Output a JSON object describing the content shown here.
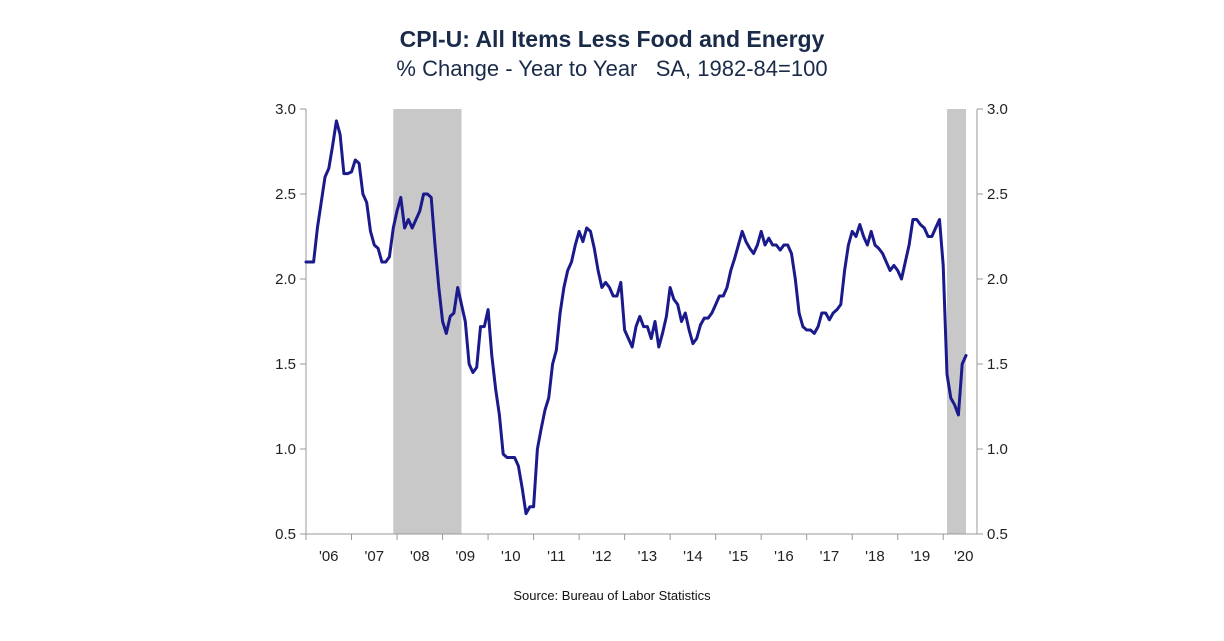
{
  "title": "CPI-U: All Items Less Food and Energy",
  "subtitle": "% Change - Year to Year   SA, 1982-84=100",
  "source": "Source: Bureau of Labor Statistics",
  "colors": {
    "line": "#1a1a8c",
    "recession": "#c8c8c8",
    "axis": "#999999",
    "title": "#1a2b4a"
  },
  "chart_data": {
    "type": "line",
    "title": "CPI-U: All Items Less Food and Energy",
    "subtitle": "% Change - Year to Year   SA, 1982-84=100",
    "xlabel": "",
    "ylabel": "",
    "x_unit": "year",
    "xlim": [
      2006.0,
      2020.5
    ],
    "ylim": [
      0.5,
      3.0
    ],
    "yticks": [
      "3.0",
      "2.5",
      "2.0",
      "1.5",
      "1.0",
      "0.5"
    ],
    "xtick_labels": [
      "'06",
      "'07",
      "'08",
      "'09",
      "'10",
      "'11",
      "'12",
      "'13",
      "'14",
      "'15",
      "'16",
      "'17",
      "'18",
      "'19",
      "'20"
    ],
    "grid": false,
    "legend": "none",
    "recessions": [
      [
        2007.917,
        2009.417
      ],
      [
        2020.083,
        2020.5
      ]
    ],
    "series": [
      {
        "x": [
          2006.0,
          2006.083,
          2006.167,
          2006.25,
          2006.333,
          2006.417,
          2006.5,
          2006.583,
          2006.667,
          2006.75,
          2006.833,
          2006.917,
          2007.0,
          2007.083,
          2007.167,
          2007.25,
          2007.333,
          2007.417,
          2007.5,
          2007.583,
          2007.667,
          2007.75,
          2007.833,
          2007.917,
          2008.0,
          2008.083,
          2008.167,
          2008.25,
          2008.333,
          2008.417,
          2008.5,
          2008.583,
          2008.667,
          2008.75,
          2008.833,
          2008.917,
          2009.0,
          2009.083,
          2009.167,
          2009.25,
          2009.333,
          2009.417,
          2009.5,
          2009.583,
          2009.667,
          2009.75,
          2009.833,
          2009.917,
          2010.0,
          2010.083,
          2010.167,
          2010.25,
          2010.333,
          2010.417,
          2010.5,
          2010.583,
          2010.667,
          2010.75,
          2010.833,
          2010.917,
          2011.0,
          2011.083,
          2011.167,
          2011.25,
          2011.333,
          2011.417,
          2011.5,
          2011.583,
          2011.667,
          2011.75,
          2011.833,
          2011.917,
          2012.0,
          2012.083,
          2012.167,
          2012.25,
          2012.333,
          2012.417,
          2012.5,
          2012.583,
          2012.667,
          2012.75,
          2012.833,
          2012.917,
          2013.0,
          2013.083,
          2013.167,
          2013.25,
          2013.333,
          2013.417,
          2013.5,
          2013.583,
          2013.667,
          2013.75,
          2013.833,
          2013.917,
          2014.0,
          2014.083,
          2014.167,
          2014.25,
          2014.333,
          2014.417,
          2014.5,
          2014.583,
          2014.667,
          2014.75,
          2014.833,
          2014.917,
          2015.0,
          2015.083,
          2015.167,
          2015.25,
          2015.333,
          2015.417,
          2015.5,
          2015.583,
          2015.667,
          2015.75,
          2015.833,
          2015.917,
          2016.0,
          2016.083,
          2016.167,
          2016.25,
          2016.333,
          2016.417,
          2016.5,
          2016.583,
          2016.667,
          2016.75,
          2016.833,
          2016.917,
          2017.0,
          2017.083,
          2017.167,
          2017.25,
          2017.333,
          2017.417,
          2017.5,
          2017.583,
          2017.667,
          2017.75,
          2017.833,
          2017.917,
          2018.0,
          2018.083,
          2018.167,
          2018.25,
          2018.333,
          2018.417,
          2018.5,
          2018.583,
          2018.667,
          2018.75,
          2018.833,
          2018.917,
          2019.0,
          2019.083,
          2019.167,
          2019.25,
          2019.333,
          2019.417,
          2019.5,
          2019.583,
          2019.667,
          2019.75,
          2019.833,
          2019.917,
          2020.0,
          2020.083,
          2020.167,
          2020.25,
          2020.333,
          2020.417,
          2020.5
        ],
        "values": [
          2.1,
          2.1,
          2.1,
          2.3,
          2.45,
          2.6,
          2.65,
          2.78,
          2.93,
          2.85,
          2.62,
          2.62,
          2.63,
          2.7,
          2.68,
          2.5,
          2.45,
          2.28,
          2.2,
          2.18,
          2.1,
          2.1,
          2.13,
          2.3,
          2.4,
          2.48,
          2.3,
          2.35,
          2.3,
          2.35,
          2.4,
          2.5,
          2.5,
          2.48,
          2.2,
          1.95,
          1.75,
          1.68,
          1.78,
          1.8,
          1.95,
          1.85,
          1.75,
          1.5,
          1.45,
          1.48,
          1.72,
          1.72,
          1.82,
          1.55,
          1.35,
          1.2,
          0.97,
          0.95,
          0.95,
          0.95,
          0.9,
          0.77,
          0.62,
          0.66,
          0.66,
          1.0,
          1.12,
          1.23,
          1.3,
          1.5,
          1.58,
          1.8,
          1.95,
          2.05,
          2.1,
          2.2,
          2.28,
          2.22,
          2.3,
          2.28,
          2.18,
          2.05,
          1.95,
          1.98,
          1.95,
          1.9,
          1.9,
          1.98,
          1.7,
          1.65,
          1.6,
          1.72,
          1.78,
          1.72,
          1.72,
          1.65,
          1.75,
          1.6,
          1.68,
          1.78,
          1.95,
          1.88,
          1.85,
          1.75,
          1.8,
          1.7,
          1.62,
          1.65,
          1.73,
          1.77,
          1.77,
          1.8,
          1.85,
          1.9,
          1.9,
          1.95,
          2.05,
          2.12,
          2.2,
          2.28,
          2.22,
          2.18,
          2.15,
          2.2,
          2.28,
          2.2,
          2.24,
          2.2,
          2.2,
          2.17,
          2.2,
          2.2,
          2.15,
          2.0,
          1.8,
          1.72,
          1.7,
          1.7,
          1.68,
          1.72,
          1.8,
          1.8,
          1.76,
          1.8,
          1.82,
          1.85,
          2.05,
          2.2,
          2.28,
          2.25,
          2.32,
          2.25,
          2.2,
          2.28,
          2.2,
          2.18,
          2.15,
          2.1,
          2.05,
          2.08,
          2.05,
          2.0,
          2.1,
          2.2,
          2.35,
          2.35,
          2.32,
          2.3,
          2.25,
          2.25,
          2.3,
          2.35,
          2.08,
          1.44,
          1.3,
          1.26,
          1.2,
          1.5,
          1.55
        ]
      }
    ]
  }
}
